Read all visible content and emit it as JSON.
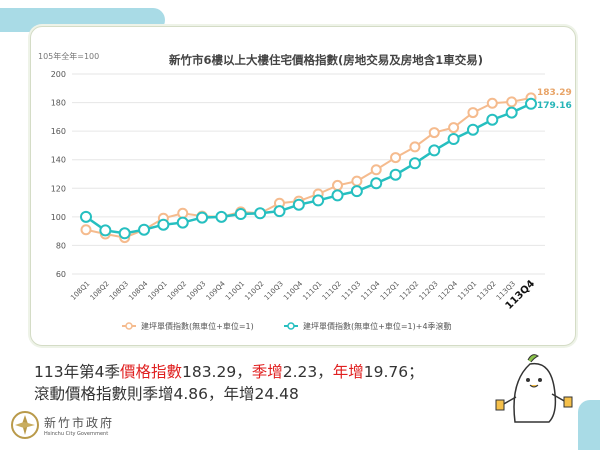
{
  "chart_data": {
    "type": "line",
    "title": "新竹市6樓以上大樓住宅價格指數(房地交易及房地含1車交易)",
    "unit_note": "105年全年=100",
    "ylim": [
      60,
      200
    ],
    "yticks": [
      60,
      80,
      100,
      120,
      140,
      160,
      180,
      200
    ],
    "grid": true,
    "legend_position": "bottom",
    "categories": [
      "108Q1",
      "108Q2",
      "108Q3",
      "108Q4",
      "109Q1",
      "109Q2",
      "109Q3",
      "109Q4",
      "110Q1",
      "110Q2",
      "110Q3",
      "110Q4",
      "111Q1",
      "111Q2",
      "111Q3",
      "111Q4",
      "112Q1",
      "112Q2",
      "112Q3",
      "112Q4",
      "113Q1",
      "113Q2",
      "113Q3",
      "113Q4"
    ],
    "series": [
      {
        "name": "建坪單價指數(無車位+車位=1)",
        "color": "#f5bb8e",
        "values": [
          91,
          88,
          85.5,
          91,
          99,
          102.5,
          100.5,
          100,
          103.5,
          102.5,
          109.5,
          111,
          116,
          122,
          125,
          133,
          141.5,
          149,
          159,
          162.5,
          173,
          179.5,
          180.5,
          183.29
        ],
        "end_label": "183.29",
        "end_label_color": "#e8a468"
      },
      {
        "name": "建坪單價指數(無車位+車位=1)+4季滾動",
        "color": "#26bfc0",
        "values": [
          100,
          90.5,
          88.5,
          91,
          94.5,
          96,
          99.5,
          100,
          102,
          102.5,
          104,
          108.5,
          111.5,
          115,
          118,
          123.5,
          129.5,
          137.5,
          146.5,
          154.5,
          161,
          168,
          173,
          179.16
        ],
        "end_label": "179.16",
        "end_label_color": "#26b5b8"
      }
    ]
  },
  "summary": {
    "l1a": "113年第4季",
    "l1b": "價格指數",
    "l1c": "183.29，",
    "l1d": "季增",
    "l1e": "2.23，",
    "l1f": "年增",
    "l1g": "19.76；",
    "l2": "滾動價格指數則季增4.86，年增24.48"
  },
  "logo": {
    "cn": "新竹市政府",
    "en": "Hsinchu City Government"
  },
  "colors": {
    "accent": "#a9dbe6",
    "highlight": "#e02020"
  }
}
